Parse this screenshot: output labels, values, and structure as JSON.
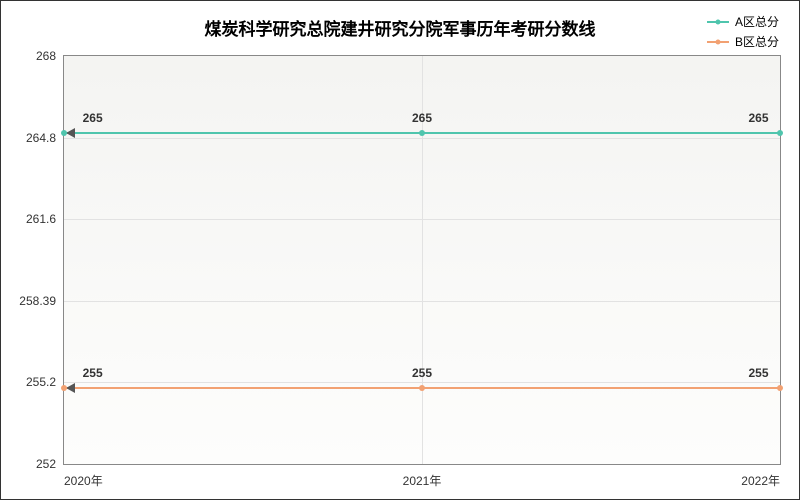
{
  "chart": {
    "type": "line",
    "title": "煤炭科学研究总院建井研究分院军事历年考研分数线",
    "title_fontsize": 17,
    "background_color": "#ffffff",
    "plot_bg_gradient_top": "#f4f4f2",
    "plot_bg_gradient_bottom": "#fdfdfc",
    "grid_color": "#e2e2e2",
    "border_color": "#888888",
    "x": {
      "categories": [
        "2020年",
        "2021年",
        "2022年"
      ],
      "positions_pct": [
        0,
        50,
        100
      ]
    },
    "y": {
      "min": 252,
      "max": 268,
      "ticks": [
        252,
        255.2,
        258.39,
        261.6,
        264.8,
        268
      ],
      "tick_labels": [
        "252",
        "255.2",
        "258.39",
        "261.6",
        "264.8",
        "268"
      ],
      "label_fontsize": 12
    },
    "series": [
      {
        "name": "A区总分",
        "color": "#4fc5ad",
        "values": [
          265,
          265,
          265
        ],
        "value_labels": [
          "265",
          "265",
          "265"
        ]
      },
      {
        "name": "B区总分",
        "color": "#f2a172",
        "values": [
          255,
          255,
          255
        ],
        "value_labels": [
          "255",
          "255",
          "255"
        ]
      }
    ],
    "arrow_color": "#555555"
  }
}
